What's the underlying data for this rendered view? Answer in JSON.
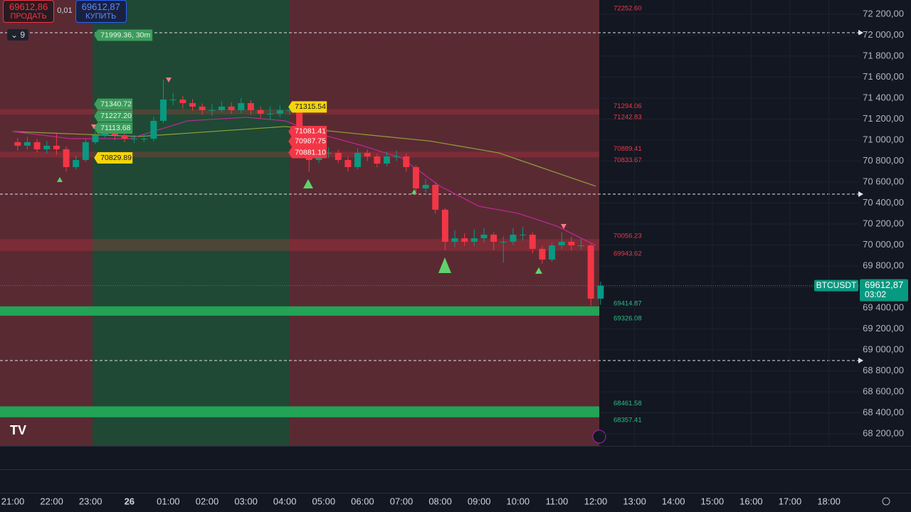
{
  "chart_data": {
    "type": "candlestick",
    "symbol": "BTCUSDT",
    "last_price": {
      "value": 69612.87,
      "label": "69612,87"
    },
    "countdown": "03:02",
    "ylim": [
      68085,
      72335
    ],
    "yticks": [
      {
        "value": 68200,
        "label": "68 200,00"
      },
      {
        "value": 68400,
        "label": "68 400,00"
      },
      {
        "value": 68600,
        "label": "68 600,00"
      },
      {
        "value": 68800,
        "label": "68 800,00"
      },
      {
        "value": 69000,
        "label": "69 000,00"
      },
      {
        "value": 69200,
        "label": "69 200,00"
      },
      {
        "value": 69400,
        "label": "69 400,00"
      },
      {
        "value": 69600,
        "label": "69 600,00"
      },
      {
        "value": 69800,
        "label": "69 800,00"
      },
      {
        "value": 70000,
        "label": "70 000,00"
      },
      {
        "value": 70200,
        "label": "70 200,00"
      },
      {
        "value": 70400,
        "label": "70 400,00"
      },
      {
        "value": 70600,
        "label": "70 600,00"
      },
      {
        "value": 70800,
        "label": "70 800,00"
      },
      {
        "value": 71000,
        "label": "71 000,00"
      },
      {
        "value": 71200,
        "label": "71 200,00"
      },
      {
        "value": 71400,
        "label": "71 400,00"
      },
      {
        "value": 71600,
        "label": "71 600,00"
      },
      {
        "value": 71800,
        "label": "71 800,00"
      },
      {
        "value": 72000,
        "label": "72 000,00"
      },
      {
        "value": 72200,
        "label": "72 200,00"
      }
    ],
    "xticks": [
      "21:00",
      "22:00",
      "23:00",
      "26",
      "01:00",
      "02:00",
      "03:00",
      "04:00",
      "05:00",
      "06:00",
      "07:00",
      "08:00",
      "09:00",
      "10:00",
      "11:00",
      "12:00",
      "13:00",
      "14:00",
      "15:00",
      "16:00",
      "17:00",
      "18:00"
    ],
    "categories": [
      "21:00",
      "21:15",
      "21:30",
      "21:45",
      "22:00",
      "22:15",
      "22:30",
      "22:45",
      "23:00",
      "23:15",
      "23:30",
      "23:45",
      "00:00",
      "00:15",
      "00:30",
      "00:45",
      "01:00",
      "01:15",
      "01:30",
      "01:45",
      "02:00",
      "02:15",
      "02:30",
      "02:45",
      "03:00",
      "03:15",
      "03:30",
      "03:45",
      "04:00",
      "04:15",
      "04:30",
      "04:45",
      "05:00",
      "05:15",
      "05:30",
      "05:45",
      "06:00",
      "06:15",
      "06:30",
      "06:45",
      "07:00",
      "07:15",
      "07:30",
      "07:45",
      "08:00",
      "08:15",
      "08:30",
      "08:45",
      "09:00",
      "09:15",
      "09:30",
      "09:45",
      "10:00",
      "10:15",
      "10:30",
      "10:45",
      "11:00",
      "11:15",
      "11:30",
      "11:45",
      "12:00"
    ],
    "open": [
      70980,
      70946,
      70980,
      70912,
      70946,
      70912,
      70742,
      70810,
      70980,
      71047,
      71081,
      71047,
      71013,
      71013,
      71013,
      71183,
      71386,
      71386,
      71352,
      71319,
      71285,
      71285,
      71319,
      71285,
      71352,
      71285,
      71251,
      71251,
      71285,
      71285,
      71115,
      70810,
      70878,
      70878,
      70810,
      70742,
      70878,
      70844,
      70776,
      70844,
      70844,
      70742,
      70539,
      70573,
      70336,
      70030,
      70064,
      70030,
      70064,
      70098,
      70030,
      70030,
      70098,
      70098,
      69963,
      69861,
      69996,
      70030,
      69996,
      69996,
      69488
    ],
    "high": [
      71020,
      71030,
      71010,
      70990,
      71060,
      70940,
      70850,
      71010,
      71090,
      71130,
      71110,
      71070,
      71050,
      71060,
      71220,
      71576,
      71450,
      71420,
      71390,
      71350,
      71340,
      71370,
      71360,
      71400,
      71380,
      71320,
      71320,
      71330,
      71320,
      71300,
      71140,
      70940,
      70930,
      70910,
      70840,
      70920,
      70910,
      70870,
      70890,
      70900,
      70870,
      70760,
      70630,
      70600,
      70350,
      70140,
      70110,
      70150,
      70160,
      70120,
      70080,
      70160,
      70170,
      70120,
      69990,
      70020,
      70120,
      70080,
      70060,
      70010,
      69650
    ],
    "low": [
      70900,
      70910,
      70880,
      70870,
      70860,
      70700,
      70720,
      70790,
      70960,
      71020,
      71000,
      70980,
      70970,
      70980,
      70990,
      71160,
      71330,
      71300,
      71280,
      71240,
      71230,
      71260,
      71250,
      71260,
      71240,
      71210,
      71200,
      71220,
      71240,
      71080,
      70700,
      70780,
      70830,
      70780,
      70700,
      70720,
      70800,
      70740,
      70750,
      70800,
      70700,
      70480,
      70500,
      70300,
      69950,
      69980,
      69990,
      69990,
      70020,
      69950,
      69830,
      70000,
      70040,
      69920,
      69820,
      69840,
      69960,
      69950,
      69960,
      69420,
      69430
    ],
    "close": [
      70946,
      70980,
      70912,
      70946,
      70912,
      70742,
      70810,
      70980,
      71047,
      71081,
      71047,
      71013,
      71013,
      71013,
      71183,
      71386,
      71386,
      71352,
      71319,
      71285,
      71285,
      71319,
      71285,
      71352,
      71285,
      71251,
      71251,
      71285,
      71285,
      71115,
      70810,
      70878,
      70878,
      70810,
      70742,
      70878,
      70844,
      70776,
      70844,
      70844,
      70742,
      70539,
      70573,
      70336,
      70030,
      70064,
      70030,
      70064,
      70098,
      70030,
      70030,
      70098,
      70098,
      69963,
      69861,
      69996,
      70030,
      69996,
      69996,
      69488,
      69612.87
    ],
    "up_color": "#089981",
    "down_color": "#f23645",
    "series": [
      {
        "color": "#8fa33a",
        "x": [
          "21:00",
          "00:15",
          "04:00",
          "07:45",
          "09:30",
          "12:00"
        ],
        "values": [
          71081,
          71034,
          71129,
          70990,
          70878,
          70560
        ]
      },
      {
        "color": "#c2279a",
        "x": [
          "21:00",
          "22:30",
          "00:00",
          "01:30",
          "03:00",
          "04:00",
          "05:00",
          "06:00",
          "07:00",
          "08:00",
          "09:00",
          "10:00",
          "11:00",
          "12:00"
        ],
        "values": [
          71081,
          71013,
          71013,
          71183,
          71217,
          71183,
          71047,
          70946,
          70830,
          70559,
          70369,
          70302,
          70180,
          69996
        ]
      }
    ],
    "zones": [
      {
        "color": "red",
        "levels": [
          {
            "value": 72252.6,
            "label": "72252.60"
          }
        ]
      },
      {
        "color": "red",
        "levels": [
          71294.06,
          71242.83
        ]
      },
      {
        "color": "red",
        "levels": [
          70889.41,
          70833.67
        ]
      },
      {
        "color": "red",
        "levels": [
          70056.23,
          69943.62
        ]
      },
      {
        "color": "green",
        "levels": [
          69414.87,
          69326.08
        ]
      },
      {
        "color": "green",
        "levels": [
          68461.58,
          68357.41
        ]
      }
    ],
    "tags": [
      {
        "kind": "green",
        "time": "23:00",
        "value": 71999.36,
        "label": "71999.36, 30m"
      },
      {
        "kind": "green",
        "time": "23:00",
        "value": 71340.72
      },
      {
        "kind": "green",
        "time": "23:00",
        "value": 71227.2,
        "label": "71227.20"
      },
      {
        "kind": "green",
        "time": "23:00",
        "value": 71113.68
      },
      {
        "kind": "yellow",
        "time": "23:00",
        "value": 70829.89
      },
      {
        "kind": "yellow",
        "time": "04:00",
        "value": 71315.54
      },
      {
        "kind": "red",
        "time": "04:00",
        "value": 71081.41
      },
      {
        "kind": "red",
        "time": "04:00",
        "value": 70987.75
      },
      {
        "kind": "red",
        "time": "04:00",
        "value": 70881.1,
        "label": "70881.10"
      }
    ]
  },
  "trade_panel": {
    "sell_price": "69612,86",
    "sell_label": "ПРОДАТЬ",
    "quantity": "0,01",
    "buy_price": "69612,87",
    "buy_label": "КУПИТЬ",
    "indicator_count": "9"
  }
}
